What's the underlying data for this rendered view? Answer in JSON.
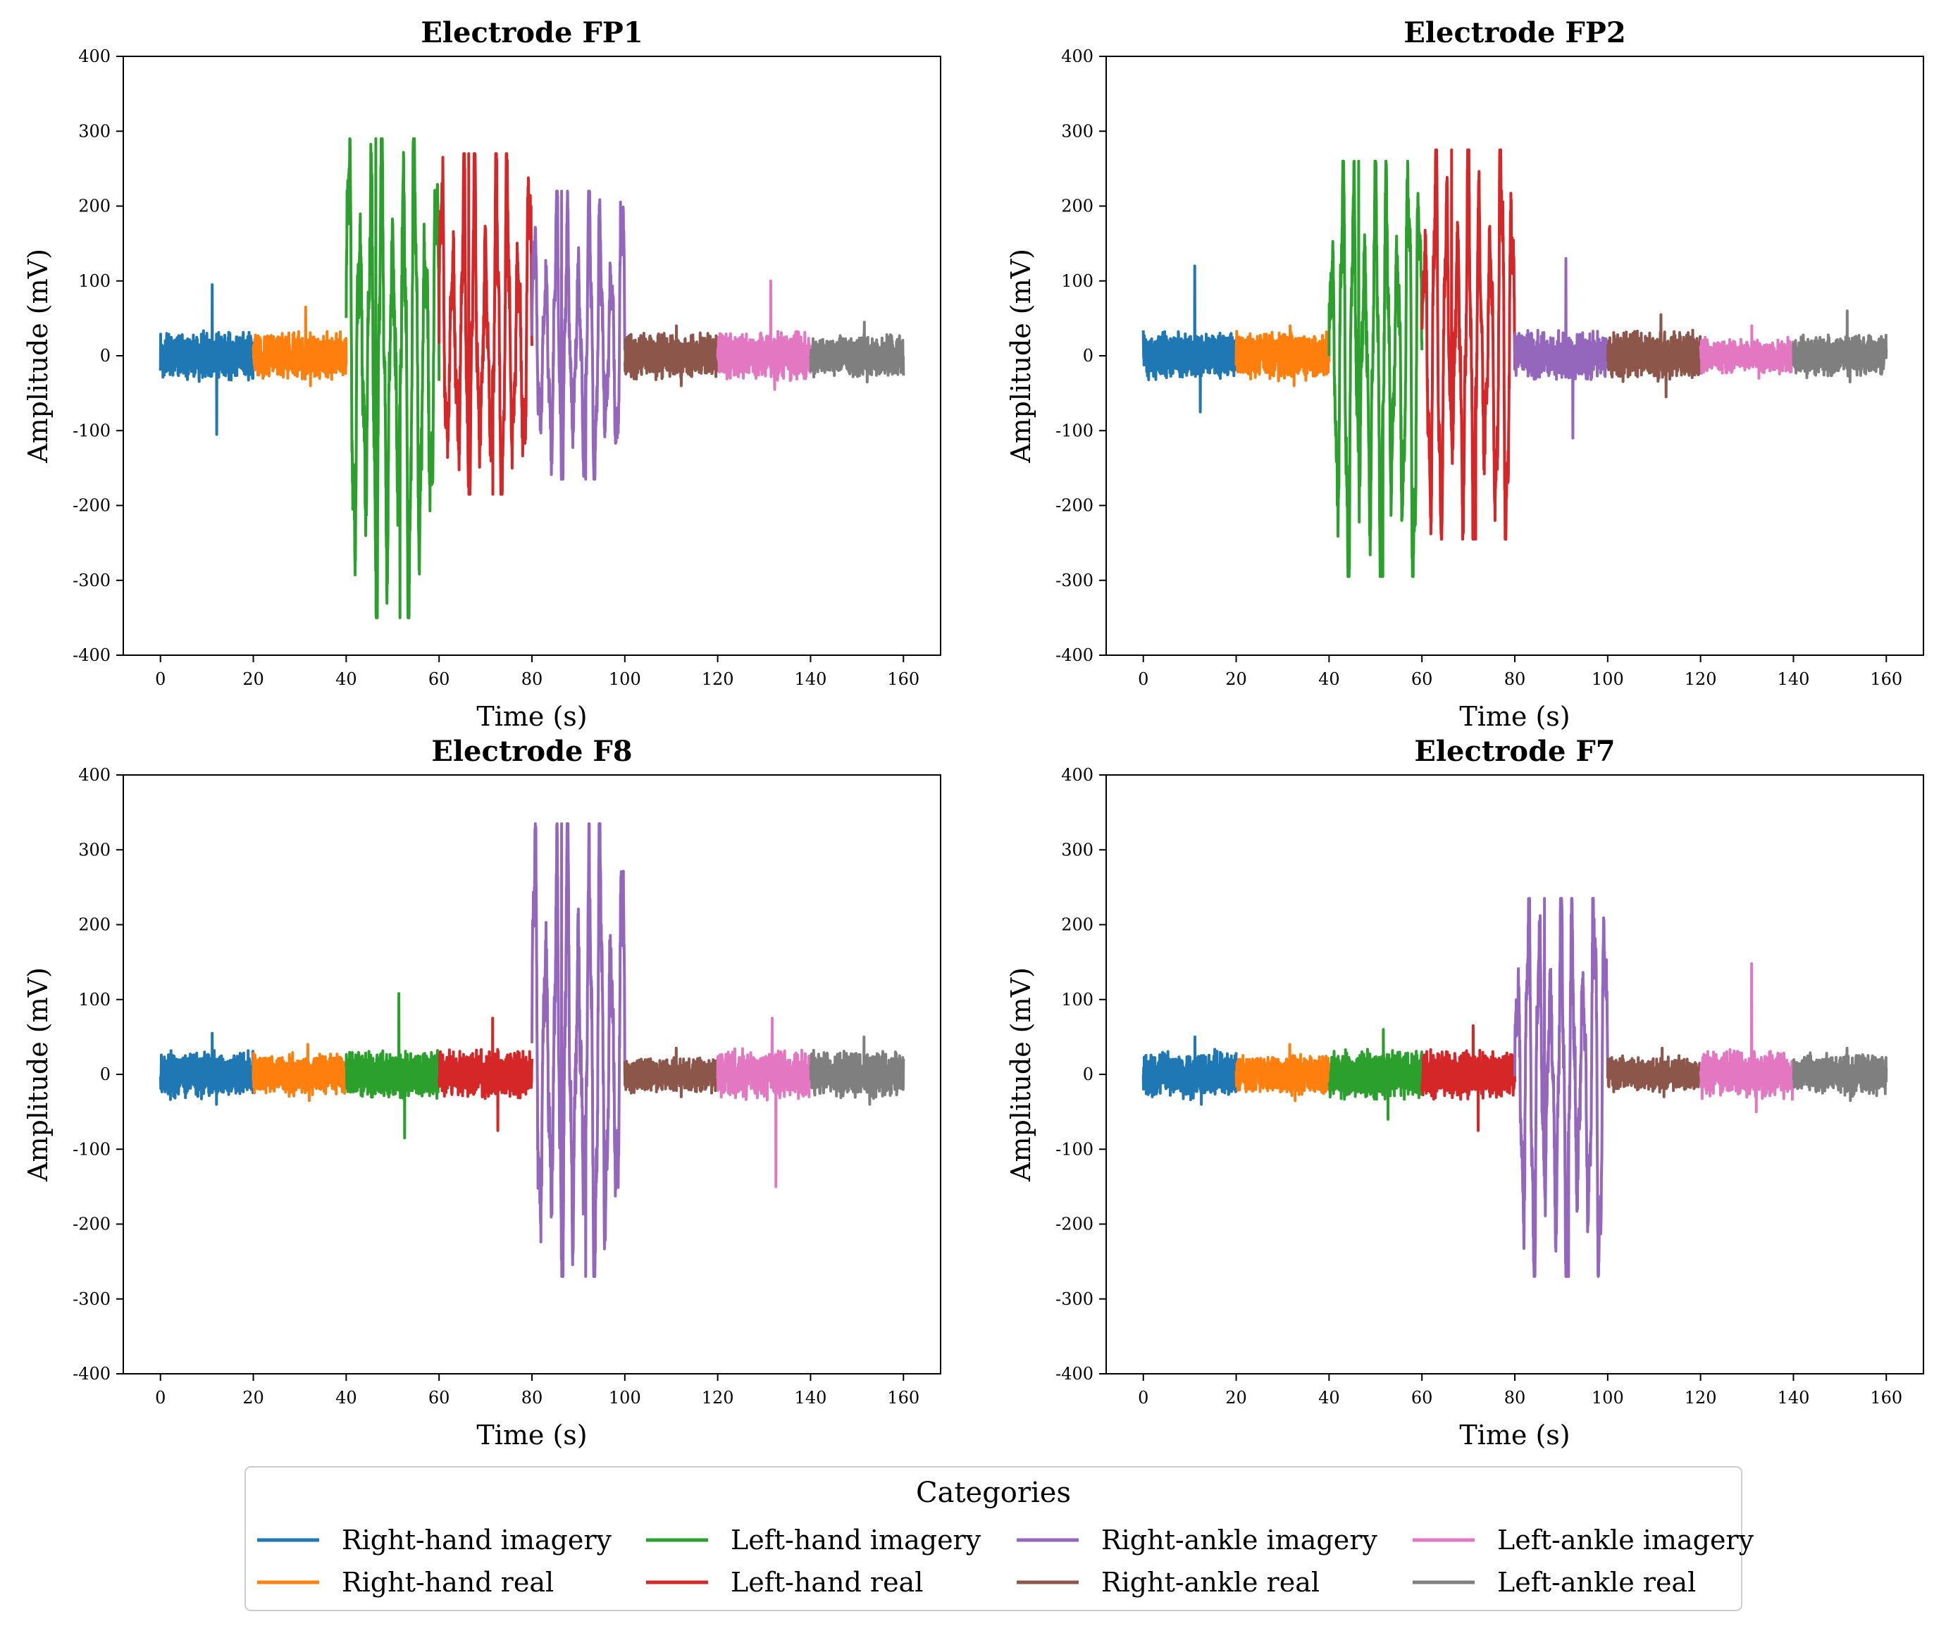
{
  "chart_data": [
    {
      "type": "line",
      "title": "Electrode FP1",
      "xlabel": "Time (s)",
      "ylabel": "Amplitude (mV)",
      "xlim": [
        -8,
        168
      ],
      "ylim": [
        -400,
        400
      ],
      "xticks": [
        0,
        20,
        40,
        60,
        80,
        100,
        120,
        140,
        160
      ],
      "yticks": [
        -400,
        -300,
        -200,
        -100,
        0,
        100,
        200,
        300,
        400
      ],
      "grid": false,
      "series": [
        {
          "name": "Right-hand imagery",
          "x_range": [
            0,
            20
          ],
          "approx_max": 95,
          "approx_min": -105
        },
        {
          "name": "Right-hand real",
          "x_range": [
            20,
            40
          ],
          "approx_max": 65,
          "approx_min": -40
        },
        {
          "name": "Left-hand imagery",
          "x_range": [
            40,
            60
          ],
          "approx_max": 290,
          "approx_min": -350
        },
        {
          "name": "Left-hand real",
          "x_range": [
            60,
            80
          ],
          "approx_max": 270,
          "approx_min": -185
        },
        {
          "name": "Right-ankle imagery",
          "x_range": [
            80,
            100
          ],
          "approx_max": 220,
          "approx_min": -165
        },
        {
          "name": "Right-ankle real",
          "x_range": [
            100,
            120
          ],
          "approx_max": 40,
          "approx_min": -40
        },
        {
          "name": "Left-ankle imagery",
          "x_range": [
            120,
            140
          ],
          "approx_max": 100,
          "approx_min": -45
        },
        {
          "name": "Left-ankle real",
          "x_range": [
            140,
            160
          ],
          "approx_max": 45,
          "approx_min": -35
        }
      ]
    },
    {
      "type": "line",
      "title": "Electrode FP2",
      "xlabel": "Time (s)",
      "ylabel": "Amplitude (mV)",
      "xlim": [
        -8,
        168
      ],
      "ylim": [
        -400,
        400
      ],
      "xticks": [
        0,
        20,
        40,
        60,
        80,
        100,
        120,
        140,
        160
      ],
      "yticks": [
        -400,
        -300,
        -200,
        -100,
        0,
        100,
        200,
        300,
        400
      ],
      "grid": false,
      "series": [
        {
          "name": "Right-hand imagery",
          "x_range": [
            0,
            20
          ],
          "approx_max": 120,
          "approx_min": -75
        },
        {
          "name": "Right-hand real",
          "x_range": [
            20,
            40
          ],
          "approx_max": 40,
          "approx_min": -40
        },
        {
          "name": "Left-hand imagery",
          "x_range": [
            40,
            60
          ],
          "approx_max": 260,
          "approx_min": -295
        },
        {
          "name": "Left-hand real",
          "x_range": [
            60,
            80
          ],
          "approx_max": 275,
          "approx_min": -245
        },
        {
          "name": "Right-ankle imagery",
          "x_range": [
            80,
            100
          ],
          "approx_max": 130,
          "approx_min": -110
        },
        {
          "name": "Right-ankle real",
          "x_range": [
            100,
            120
          ],
          "approx_max": 55,
          "approx_min": -55
        },
        {
          "name": "Left-ankle imagery",
          "x_range": [
            120,
            140
          ],
          "approx_max": 40,
          "approx_min": -30
        },
        {
          "name": "Left-ankle real",
          "x_range": [
            140,
            160
          ],
          "approx_max": 60,
          "approx_min": -35
        }
      ]
    },
    {
      "type": "line",
      "title": "Electrode F8",
      "xlabel": "Time (s)",
      "ylabel": "Amplitude (mV)",
      "xlim": [
        -8,
        168
      ],
      "ylim": [
        -400,
        400
      ],
      "xticks": [
        0,
        20,
        40,
        60,
        80,
        100,
        120,
        140,
        160
      ],
      "yticks": [
        -400,
        -300,
        -200,
        -100,
        0,
        100,
        200,
        300,
        400
      ],
      "grid": false,
      "series": [
        {
          "name": "Right-hand imagery",
          "x_range": [
            0,
            20
          ],
          "approx_max": 55,
          "approx_min": -40
        },
        {
          "name": "Right-hand real",
          "x_range": [
            20,
            40
          ],
          "approx_max": 40,
          "approx_min": -35
        },
        {
          "name": "Left-hand imagery",
          "x_range": [
            40,
            60
          ],
          "approx_max": 108,
          "approx_min": -85
        },
        {
          "name": "Left-hand real",
          "x_range": [
            60,
            80
          ],
          "approx_max": 75,
          "approx_min": -75
        },
        {
          "name": "Right-ankle imagery",
          "x_range": [
            80,
            100
          ],
          "approx_max": 335,
          "approx_min": -270
        },
        {
          "name": "Right-ankle real",
          "x_range": [
            100,
            120
          ],
          "approx_max": 35,
          "approx_min": -30
        },
        {
          "name": "Left-ankle imagery",
          "x_range": [
            120,
            140
          ],
          "approx_max": 75,
          "approx_min": -150
        },
        {
          "name": "Left-ankle real",
          "x_range": [
            140,
            160
          ],
          "approx_max": 50,
          "approx_min": -40
        }
      ]
    },
    {
      "type": "line",
      "title": "Electrode F7",
      "xlabel": "Time (s)",
      "ylabel": "Amplitude (mV)",
      "xlim": [
        -8,
        168
      ],
      "ylim": [
        -400,
        400
      ],
      "xticks": [
        0,
        20,
        40,
        60,
        80,
        100,
        120,
        140,
        160
      ],
      "yticks": [
        -400,
        -300,
        -200,
        -100,
        0,
        100,
        200,
        300,
        400
      ],
      "grid": false,
      "series": [
        {
          "name": "Right-hand imagery",
          "x_range": [
            0,
            20
          ],
          "approx_max": 50,
          "approx_min": -40
        },
        {
          "name": "Right-hand real",
          "x_range": [
            20,
            40
          ],
          "approx_max": 40,
          "approx_min": -35
        },
        {
          "name": "Left-hand imagery",
          "x_range": [
            40,
            60
          ],
          "approx_max": 60,
          "approx_min": -60
        },
        {
          "name": "Left-hand real",
          "x_range": [
            60,
            80
          ],
          "approx_max": 65,
          "approx_min": -75
        },
        {
          "name": "Right-ankle imagery",
          "x_range": [
            80,
            100
          ],
          "approx_max": 235,
          "approx_min": -270
        },
        {
          "name": "Right-ankle real",
          "x_range": [
            100,
            120
          ],
          "approx_max": 35,
          "approx_min": -30
        },
        {
          "name": "Left-ankle imagery",
          "x_range": [
            120,
            140
          ],
          "approx_max": 148,
          "approx_min": -50
        },
        {
          "name": "Left-ankle real",
          "x_range": [
            140,
            160
          ],
          "approx_max": 35,
          "approx_min": -35
        }
      ]
    }
  ],
  "legend": {
    "title": "Categories",
    "items": [
      {
        "label": "Right-hand imagery",
        "color": "#1f77b4"
      },
      {
        "label": "Right-hand real",
        "color": "#ff7f0e"
      },
      {
        "label": "Left-hand imagery",
        "color": "#2ca02c"
      },
      {
        "label": "Left-hand real",
        "color": "#d62728"
      },
      {
        "label": "Right-ankle imagery",
        "color": "#9467bd"
      },
      {
        "label": "Right-ankle real",
        "color": "#8c564b"
      },
      {
        "label": "Left-ankle imagery",
        "color": "#e377c2"
      },
      {
        "label": "Left-ankle real",
        "color": "#7f7f7f"
      }
    ]
  }
}
